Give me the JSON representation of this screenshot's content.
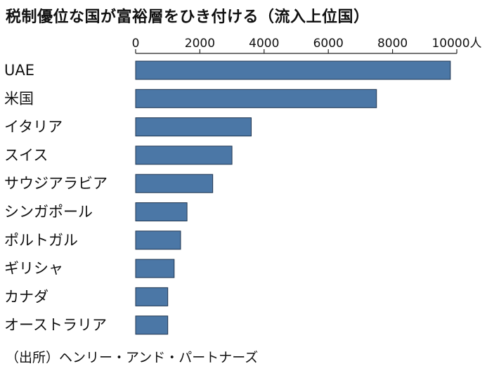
{
  "chart_data": {
    "type": "bar",
    "orientation": "horizontal",
    "title": "税制優位な国が富裕層をひき付ける（流入上位国）",
    "categories": [
      "UAE",
      "米国",
      "イタリア",
      "スイス",
      "サウジアラビア",
      "シンガポール",
      "ポルトガル",
      "ギリシャ",
      "カナダ",
      "オーストラリア"
    ],
    "values": [
      9800,
      7500,
      3600,
      3000,
      2400,
      1600,
      1400,
      1200,
      1000,
      1000
    ],
    "xlim": [
      0,
      10000
    ],
    "xticks": [
      0,
      2000,
      4000,
      6000,
      8000,
      10000
    ],
    "xtick_labels": [
      "0",
      "2000",
      "4000",
      "6000",
      "8000",
      "10000"
    ],
    "unit": "人",
    "axis_position": "top",
    "bar_color": "#4b77a6",
    "grid": false,
    "source": "（出所）ヘンリー・アンド・パートナーズ"
  }
}
